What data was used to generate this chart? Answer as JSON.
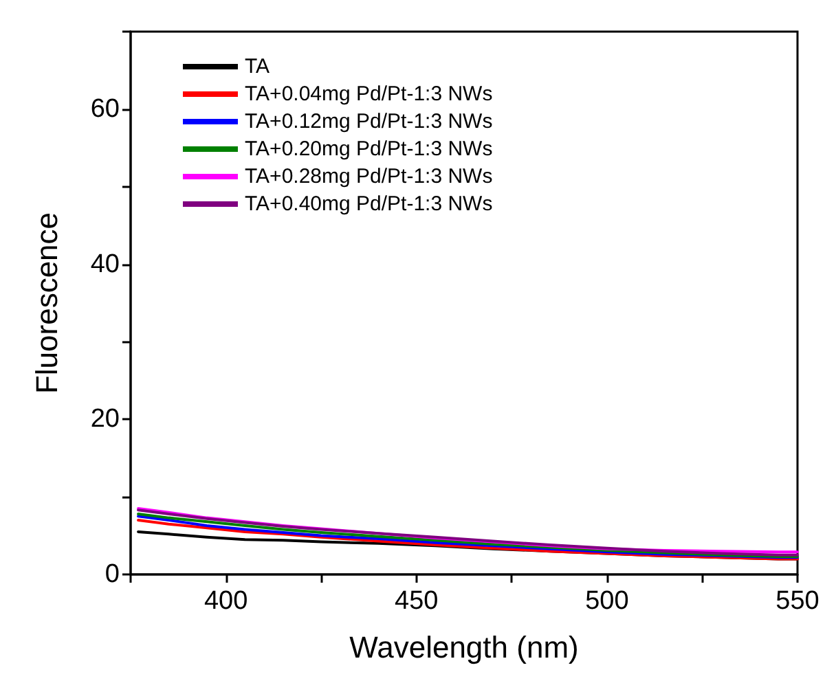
{
  "chart_data": {
    "type": "line",
    "xlabel": "Wavelength (nm)",
    "ylabel": "Fluorescence",
    "x": [
      377,
      385,
      395,
      405,
      415,
      425,
      440,
      455,
      470,
      485,
      500,
      515,
      530,
      545,
      550
    ],
    "xlim": [
      375,
      550
    ],
    "ylim": [
      0,
      70
    ],
    "xticks": [
      {
        "value": 375,
        "label": null
      },
      400,
      {
        "value": 425,
        "label": null
      },
      450,
      {
        "value": 475,
        "label": null
      },
      500,
      {
        "value": 525,
        "label": null
      },
      550
    ],
    "yticks": [
      0,
      {
        "value": 10,
        "label": null
      },
      20,
      {
        "value": 30,
        "label": null
      },
      40,
      {
        "value": 50,
        "label": null
      },
      60,
      {
        "value": 70,
        "label": null
      }
    ],
    "grid": false,
    "legend": "top left",
    "marker": "none",
    "line_style": "solid",
    "series": [
      {
        "name": "TA",
        "color": "#000000",
        "values": [
          5.5,
          5.2,
          4.8,
          4.5,
          4.4,
          4.2,
          4.0,
          3.7,
          3.3,
          3.0,
          2.7,
          2.4,
          2.2,
          2.0,
          2.0
        ]
      },
      {
        "name": "TA+0.04mg Pd/Pt-1:3 NWs",
        "color": "#ff0000",
        "values": [
          7.0,
          6.5,
          6.0,
          5.5,
          5.2,
          4.8,
          4.3,
          3.8,
          3.4,
          3.0,
          2.7,
          2.4,
          2.2,
          2.0,
          2.0
        ]
      },
      {
        "name": "TA+0.12mg Pd/Pt-1:3 NWs",
        "color": "#0000ff",
        "values": [
          7.5,
          7.0,
          6.3,
          5.8,
          5.4,
          5.0,
          4.6,
          4.1,
          3.7,
          3.3,
          2.9,
          2.6,
          2.4,
          2.2,
          2.2
        ]
      },
      {
        "name": "TA+0.20mg Pd/Pt-1:3 NWs",
        "color": "#008000",
        "values": [
          7.8,
          7.3,
          6.8,
          6.3,
          5.8,
          5.4,
          4.9,
          4.4,
          3.9,
          3.5,
          3.1,
          2.8,
          2.5,
          2.3,
          2.3
        ]
      },
      {
        "name": "TA+0.28mg Pd/Pt-1:3 NWs",
        "color": "#ff00ff",
        "values": [
          8.5,
          8.0,
          7.3,
          6.8,
          6.3,
          5.9,
          5.3,
          4.7,
          4.2,
          3.7,
          3.3,
          3.1,
          3.0,
          2.9,
          2.9
        ]
      },
      {
        "name": "TA+0.40mg Pd/Pt-1:3 NWs",
        "color": "#800080",
        "values": [
          8.3,
          7.8,
          7.2,
          6.7,
          6.2,
          5.8,
          5.3,
          4.8,
          4.3,
          3.8,
          3.4,
          3.0,
          2.7,
          2.5,
          2.5
        ]
      }
    ]
  }
}
